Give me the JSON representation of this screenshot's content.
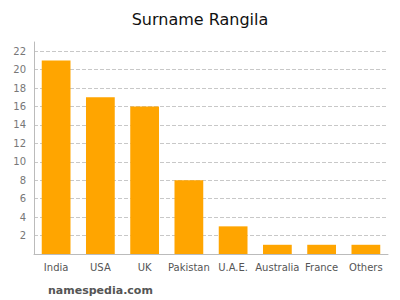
{
  "chart_data": {
    "type": "bar",
    "title": "Surname Rangila",
    "categories": [
      "India",
      "USA",
      "UK",
      "Pakistan",
      "U.A.E.",
      "Australia",
      "France",
      "Others"
    ],
    "values": [
      21,
      17,
      16,
      8,
      3,
      1,
      1,
      1
    ],
    "color": "#FFA500",
    "ylim": [
      0,
      23
    ],
    "yticks": [
      2,
      4,
      6,
      8,
      10,
      12,
      14,
      16,
      18,
      20,
      22
    ],
    "grid": true,
    "annotation": "namespedia.com"
  }
}
